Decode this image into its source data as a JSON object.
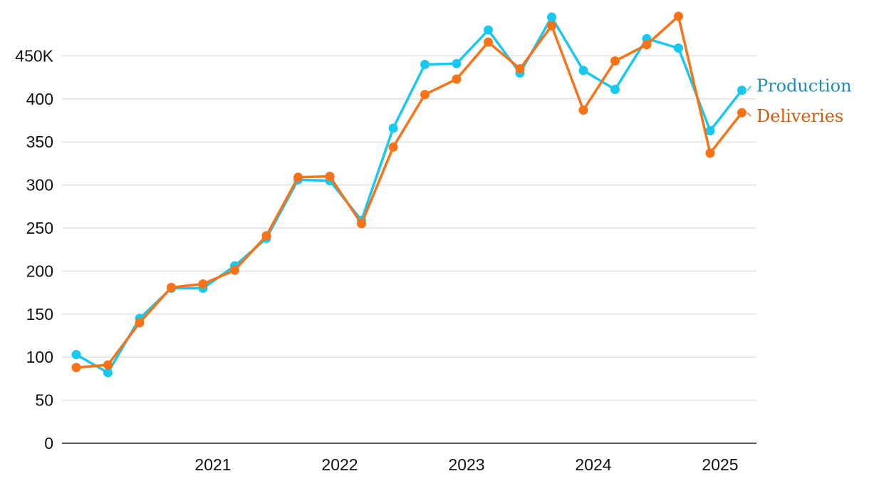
{
  "chart_data": {
    "type": "line",
    "title": "",
    "xlabel": "",
    "ylabel": "",
    "ylim": [
      0,
      500
    ],
    "yticks": [
      {
        "value": 0,
        "label": "0"
      },
      {
        "value": 50,
        "label": "50"
      },
      {
        "value": 100,
        "label": "100"
      },
      {
        "value": 150,
        "label": "150"
      },
      {
        "value": 200,
        "label": "200"
      },
      {
        "value": 250,
        "label": "250"
      },
      {
        "value": 300,
        "label": "300"
      },
      {
        "value": 350,
        "label": "350"
      },
      {
        "value": 400,
        "label": "400"
      },
      {
        "value": 450,
        "label": "450K"
      }
    ],
    "xticks": [
      {
        "value": "2021",
        "label": "2021"
      },
      {
        "value": "2022",
        "label": "2022"
      },
      {
        "value": "2023",
        "label": "2023"
      },
      {
        "value": "2024",
        "label": "2024"
      },
      {
        "value": "2025",
        "label": "2025"
      }
    ],
    "x": [
      "2020 Q1",
      "2020 Q2",
      "2020 Q3",
      "2020 Q4",
      "2021 Q1",
      "2021 Q2",
      "2021 Q3",
      "2021 Q4",
      "2022 Q1",
      "2022 Q2",
      "2022 Q3",
      "2022 Q4",
      "2023 Q1",
      "2023 Q2",
      "2023 Q3",
      "2023 Q4",
      "2024 Q1",
      "2024 Q2",
      "2024 Q3",
      "2024 Q4",
      "2025 Q1",
      "2025 Q2"
    ],
    "grid": true,
    "legend": "direct labels at right end of lines",
    "series": [
      {
        "name": "Production",
        "color": "#17c8f0",
        "label_color": "#1a8fb3",
        "values": [
          103,
          82,
          145,
          180,
          180,
          206,
          238,
          306,
          305,
          259,
          366,
          440,
          441,
          480,
          430,
          495,
          433,
          411,
          470,
          459,
          363,
          410
        ]
      },
      {
        "name": "Deliveries",
        "color": "#f97316",
        "label_color": "#d9590b",
        "values": [
          88,
          91,
          140,
          181,
          185,
          201,
          241,
          309,
          310,
          255,
          344,
          405,
          423,
          466,
          435,
          485,
          387,
          444,
          463,
          496,
          337,
          384
        ]
      }
    ]
  }
}
